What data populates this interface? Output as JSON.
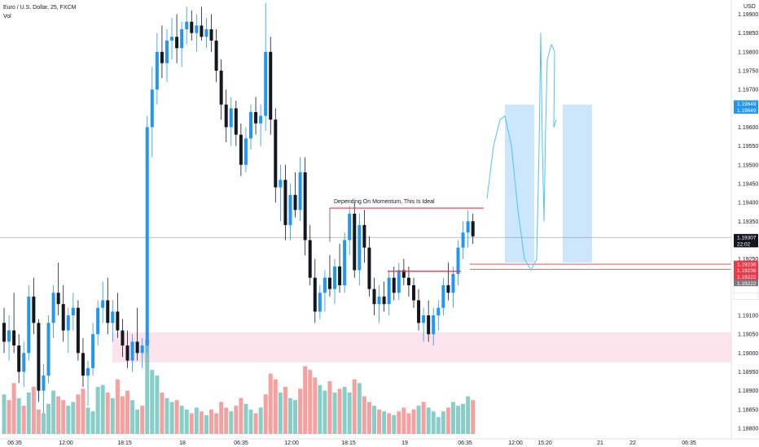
{
  "header": {
    "symbol_line": "Euro / U.S. Dollar, 25, FXCM",
    "volume_label": "Vol"
  },
  "price_axis": {
    "currency": "USD",
    "ticks": [
      "1.19900",
      "1.19850",
      "1.19800",
      "1.19750",
      "1.19700",
      "1.19650",
      "1.19600",
      "1.19550",
      "1.19500",
      "1.19450",
      "1.19400",
      "1.19350",
      "1.19300",
      "1.19250",
      "1.19200",
      "1.19150",
      "1.19100",
      "1.19050",
      "1.19000",
      "1.18950",
      "1.18900",
      "1.18850",
      "1.18800"
    ]
  },
  "time_axis": {
    "labels": [
      "06:35",
      "12:00",
      "18:15",
      "18",
      "06:35",
      "12:00",
      "18:15",
      "19",
      "06:35",
      "12:00",
      "15:20",
      "21",
      "22",
      "06:35"
    ]
  },
  "badges": [
    {
      "text": "1.19649",
      "price": 1.19662,
      "color": "#2196f3"
    },
    {
      "text": "1.19649",
      "price": 1.19645,
      "color": "#2196f3"
    },
    {
      "text": "1.19307",
      "price": 1.19307,
      "color": "#131722"
    },
    {
      "text": "22:02",
      "price": 1.1929,
      "color": "#131722"
    },
    {
      "text": "1.19236",
      "price": 1.19236,
      "color": "#f23645"
    },
    {
      "text": "1.19236",
      "price": 1.19219,
      "color": "#f23645"
    },
    {
      "text": "1.19222",
      "price": 1.19202,
      "color": "#f23645"
    },
    {
      "text": "1.19222",
      "price": 1.19185,
      "color": "#787b86"
    },
    {
      "text": "1.19200",
      "price": 1.19168,
      "color": "#ffffff"
    },
    {
      "text": "1.19199",
      "price": 1.19151,
      "color": "#ffffff"
    }
  ],
  "annotations": {
    "ideal_text": "Depending On Momentum, This Is Ideal"
  },
  "colors": {
    "up": "#2196f3",
    "down": "#131722",
    "vol_up": "#26a69a",
    "vol_down": "#ef5350",
    "zone": "#fce4ec",
    "target_box": "#bbdefb",
    "level_line": "#f23645",
    "drawing": "#4fc3f7"
  },
  "chart_data": {
    "type": "candlestick",
    "symbol": "Euro / U.S. Dollar",
    "timeframe": "25",
    "source": "FXCM",
    "ylim": [
      1.1877,
      1.1995
    ],
    "last_price": 1.19307,
    "ohlc": [
      [
        1.1908,
        1.1912,
        1.19,
        1.1903
      ],
      [
        1.1903,
        1.191,
        1.1898,
        1.1906
      ],
      [
        1.1906,
        1.1916,
        1.19,
        1.1902
      ],
      [
        1.1902,
        1.1905,
        1.1892,
        1.1895
      ],
      [
        1.1895,
        1.1903,
        1.1891,
        1.19
      ],
      [
        1.19,
        1.1918,
        1.1898,
        1.1915
      ],
      [
        1.1915,
        1.192,
        1.1905,
        1.1908
      ],
      [
        1.1908,
        1.1909,
        1.1887,
        1.189
      ],
      [
        1.189,
        1.1897,
        1.1884,
        1.1894
      ],
      [
        1.1894,
        1.191,
        1.1892,
        1.1908
      ],
      [
        1.1908,
        1.1918,
        1.1904,
        1.1916
      ],
      [
        1.1916,
        1.1924,
        1.191,
        1.1913
      ],
      [
        1.1913,
        1.1918,
        1.1903,
        1.1906
      ],
      [
        1.1906,
        1.1912,
        1.19,
        1.191
      ],
      [
        1.191,
        1.1916,
        1.1906,
        1.1912
      ],
      [
        1.1912,
        1.1914,
        1.1898,
        1.19
      ],
      [
        1.19,
        1.1904,
        1.1891,
        1.1894
      ],
      [
        1.1894,
        1.1898,
        1.1886,
        1.1896
      ],
      [
        1.1896,
        1.1908,
        1.1894,
        1.1905
      ],
      [
        1.1905,
        1.1914,
        1.1902,
        1.1912
      ],
      [
        1.1912,
        1.1919,
        1.1908,
        1.1914
      ],
      [
        1.1914,
        1.192,
        1.1905,
        1.1908
      ],
      [
        1.1908,
        1.1914,
        1.1903,
        1.1911
      ],
      [
        1.1911,
        1.1916,
        1.1904,
        1.1906
      ],
      [
        1.1906,
        1.1909,
        1.1899,
        1.1902
      ],
      [
        1.1902,
        1.1906,
        1.1896,
        1.1898
      ],
      [
        1.1898,
        1.1905,
        1.1895,
        1.1903
      ],
      [
        1.1903,
        1.1912,
        1.1898,
        1.19
      ],
      [
        1.19,
        1.1904,
        1.1896,
        1.1902
      ],
      [
        1.1902,
        1.1963,
        1.19,
        1.196
      ],
      [
        1.196,
        1.1976,
        1.1952,
        1.197
      ],
      [
        1.197,
        1.1985,
        1.1966,
        1.198
      ],
      [
        1.198,
        1.1987,
        1.1973,
        1.1977
      ],
      [
        1.1977,
        1.1986,
        1.1972,
        1.1983
      ],
      [
        1.1983,
        1.1989,
        1.1978,
        1.1984
      ],
      [
        1.1984,
        1.199,
        1.1977,
        1.1981
      ],
      [
        1.1981,
        1.1988,
        1.1976,
        1.1986
      ],
      [
        1.1986,
        1.1992,
        1.1982,
        1.1988
      ],
      [
        1.1988,
        1.1991,
        1.1983,
        1.1985
      ],
      [
        1.1985,
        1.199,
        1.198,
        1.1987
      ],
      [
        1.1987,
        1.1992,
        1.1983,
        1.1984
      ],
      [
        1.1984,
        1.1989,
        1.1981,
        1.1986
      ],
      [
        1.1986,
        1.199,
        1.198,
        1.1983
      ],
      [
        1.1983,
        1.1986,
        1.1972,
        1.1975
      ],
      [
        1.1975,
        1.1978,
        1.1962,
        1.1966
      ],
      [
        1.1966,
        1.197,
        1.1956,
        1.196
      ],
      [
        1.196,
        1.1968,
        1.1955,
        1.1965
      ],
      [
        1.1965,
        1.1967,
        1.1955,
        1.1958
      ],
      [
        1.1958,
        1.1961,
        1.1947,
        1.195
      ],
      [
        1.195,
        1.196,
        1.1948,
        1.1957
      ],
      [
        1.1957,
        1.1966,
        1.1954,
        1.1964
      ],
      [
        1.1964,
        1.1968,
        1.1958,
        1.1961
      ],
      [
        1.1961,
        1.1966,
        1.1955,
        1.1963
      ],
      [
        1.1963,
        1.1993,
        1.1959,
        1.198
      ],
      [
        1.198,
        1.1984,
        1.1958,
        1.1962
      ],
      [
        1.1962,
        1.1965,
        1.194,
        1.1944
      ],
      [
        1.1944,
        1.195,
        1.1935,
        1.1946
      ],
      [
        1.1946,
        1.195,
        1.193,
        1.1934
      ],
      [
        1.1934,
        1.1945,
        1.193,
        1.1942
      ],
      [
        1.1942,
        1.1948,
        1.1936,
        1.1938
      ],
      [
        1.1938,
        1.1952,
        1.1935,
        1.1948
      ],
      [
        1.1948,
        1.1952,
        1.1926,
        1.193
      ],
      [
        1.193,
        1.1934,
        1.1918,
        1.192
      ],
      [
        1.192,
        1.1925,
        1.1908,
        1.1911
      ],
      [
        1.1911,
        1.1918,
        1.1909,
        1.1916
      ],
      [
        1.1916,
        1.1922,
        1.1911,
        1.192
      ],
      [
        1.192,
        1.1926,
        1.1915,
        1.1917
      ],
      [
        1.1917,
        1.1925,
        1.1913,
        1.1923
      ],
      [
        1.1923,
        1.1929,
        1.1916,
        1.1918
      ],
      [
        1.1918,
        1.1932,
        1.1916,
        1.193
      ],
      [
        1.193,
        1.1939,
        1.1926,
        1.1937
      ],
      [
        1.1937,
        1.194,
        1.192,
        1.1922
      ],
      [
        1.1922,
        1.1937,
        1.1918,
        1.1934
      ],
      [
        1.1934,
        1.1938,
        1.1924,
        1.1928
      ],
      [
        1.1928,
        1.1931,
        1.1915,
        1.1917
      ],
      [
        1.1917,
        1.192,
        1.191,
        1.1913
      ],
      [
        1.1913,
        1.1918,
        1.1908,
        1.1915
      ],
      [
        1.1915,
        1.1919,
        1.1911,
        1.1913
      ],
      [
        1.1913,
        1.1922,
        1.191,
        1.192
      ],
      [
        1.192,
        1.1923,
        1.1914,
        1.1916
      ],
      [
        1.1916,
        1.1924,
        1.1914,
        1.1922
      ],
      [
        1.1922,
        1.1925,
        1.1918,
        1.192
      ],
      [
        1.192,
        1.1923,
        1.1915,
        1.1918
      ],
      [
        1.1918,
        1.192,
        1.1912,
        1.1914
      ],
      [
        1.1914,
        1.1917,
        1.1906,
        1.1908
      ],
      [
        1.1908,
        1.1912,
        1.1903,
        1.191
      ],
      [
        1.191,
        1.1914,
        1.1903,
        1.1905
      ],
      [
        1.1905,
        1.1912,
        1.1902,
        1.191
      ],
      [
        1.191,
        1.1914,
        1.1906,
        1.1912
      ],
      [
        1.1912,
        1.192,
        1.191,
        1.1918
      ],
      [
        1.1918,
        1.1924,
        1.1914,
        1.1916
      ],
      [
        1.1916,
        1.1923,
        1.1912,
        1.1921
      ],
      [
        1.1921,
        1.193,
        1.1918,
        1.1928
      ],
      [
        1.1928,
        1.1935,
        1.1925,
        1.1932
      ],
      [
        1.1932,
        1.1938,
        1.1928,
        1.1935
      ],
      [
        1.1935,
        1.1937,
        1.1929,
        1.1931
      ]
    ],
    "volume": [
      [
        42,
        0
      ],
      [
        36,
        1
      ],
      [
        54,
        1
      ],
      [
        38,
        0
      ],
      [
        30,
        1
      ],
      [
        44,
        0
      ],
      [
        50,
        1
      ],
      [
        26,
        1
      ],
      [
        22,
        0
      ],
      [
        32,
        0
      ],
      [
        46,
        0
      ],
      [
        40,
        1
      ],
      [
        36,
        1
      ],
      [
        30,
        0
      ],
      [
        34,
        0
      ],
      [
        42,
        1
      ],
      [
        48,
        1
      ],
      [
        28,
        0
      ],
      [
        24,
        0
      ],
      [
        50,
        0
      ],
      [
        52,
        0
      ],
      [
        44,
        1
      ],
      [
        38,
        0
      ],
      [
        58,
        1
      ],
      [
        40,
        1
      ],
      [
        46,
        1
      ],
      [
        36,
        0
      ],
      [
        26,
        0
      ],
      [
        30,
        1
      ],
      [
        100,
        0
      ],
      [
        68,
        0
      ],
      [
        62,
        0
      ],
      [
        44,
        1
      ],
      [
        38,
        0
      ],
      [
        34,
        0
      ],
      [
        36,
        1
      ],
      [
        30,
        0
      ],
      [
        26,
        0
      ],
      [
        22,
        1
      ],
      [
        28,
        0
      ],
      [
        24,
        1
      ],
      [
        20,
        0
      ],
      [
        26,
        1
      ],
      [
        22,
        1
      ],
      [
        34,
        1
      ],
      [
        28,
        1
      ],
      [
        24,
        0
      ],
      [
        30,
        1
      ],
      [
        38,
        1
      ],
      [
        32,
        0
      ],
      [
        26,
        0
      ],
      [
        22,
        1
      ],
      [
        28,
        0
      ],
      [
        42,
        1
      ],
      [
        64,
        1
      ],
      [
        58,
        1
      ],
      [
        44,
        0
      ],
      [
        50,
        1
      ],
      [
        38,
        0
      ],
      [
        36,
        0
      ],
      [
        48,
        1
      ],
      [
        72,
        1
      ],
      [
        68,
        1
      ],
      [
        60,
        1
      ],
      [
        52,
        0
      ],
      [
        46,
        0
      ],
      [
        56,
        1
      ],
      [
        44,
        0
      ],
      [
        48,
        1
      ],
      [
        50,
        0
      ],
      [
        44,
        0
      ],
      [
        58,
        1
      ],
      [
        54,
        0
      ],
      [
        40,
        1
      ],
      [
        34,
        1
      ],
      [
        30,
        0
      ],
      [
        26,
        1
      ],
      [
        24,
        0
      ],
      [
        22,
        1
      ],
      [
        20,
        0
      ],
      [
        24,
        1
      ],
      [
        28,
        1
      ],
      [
        22,
        1
      ],
      [
        26,
        1
      ],
      [
        30,
        0
      ],
      [
        34,
        1
      ],
      [
        28,
        0
      ],
      [
        24,
        0
      ],
      [
        18,
        0
      ],
      [
        24,
        0
      ],
      [
        28,
        1
      ],
      [
        34,
        0
      ],
      [
        30,
        0
      ],
      [
        32,
        0
      ],
      [
        40,
        0
      ],
      [
        36,
        1
      ]
    ],
    "levels": [
      {
        "name": "Depending On Momentum, This Is Ideal",
        "price": 1.19385
      },
      {
        "price": 1.19236
      },
      {
        "price": 1.19222
      }
    ],
    "demand_zone": [
      1.18975,
      1.19055
    ],
    "target_zones": [
      [
        1.1924,
        1.1966
      ],
      [
        1.1924,
        1.1966
      ]
    ]
  }
}
